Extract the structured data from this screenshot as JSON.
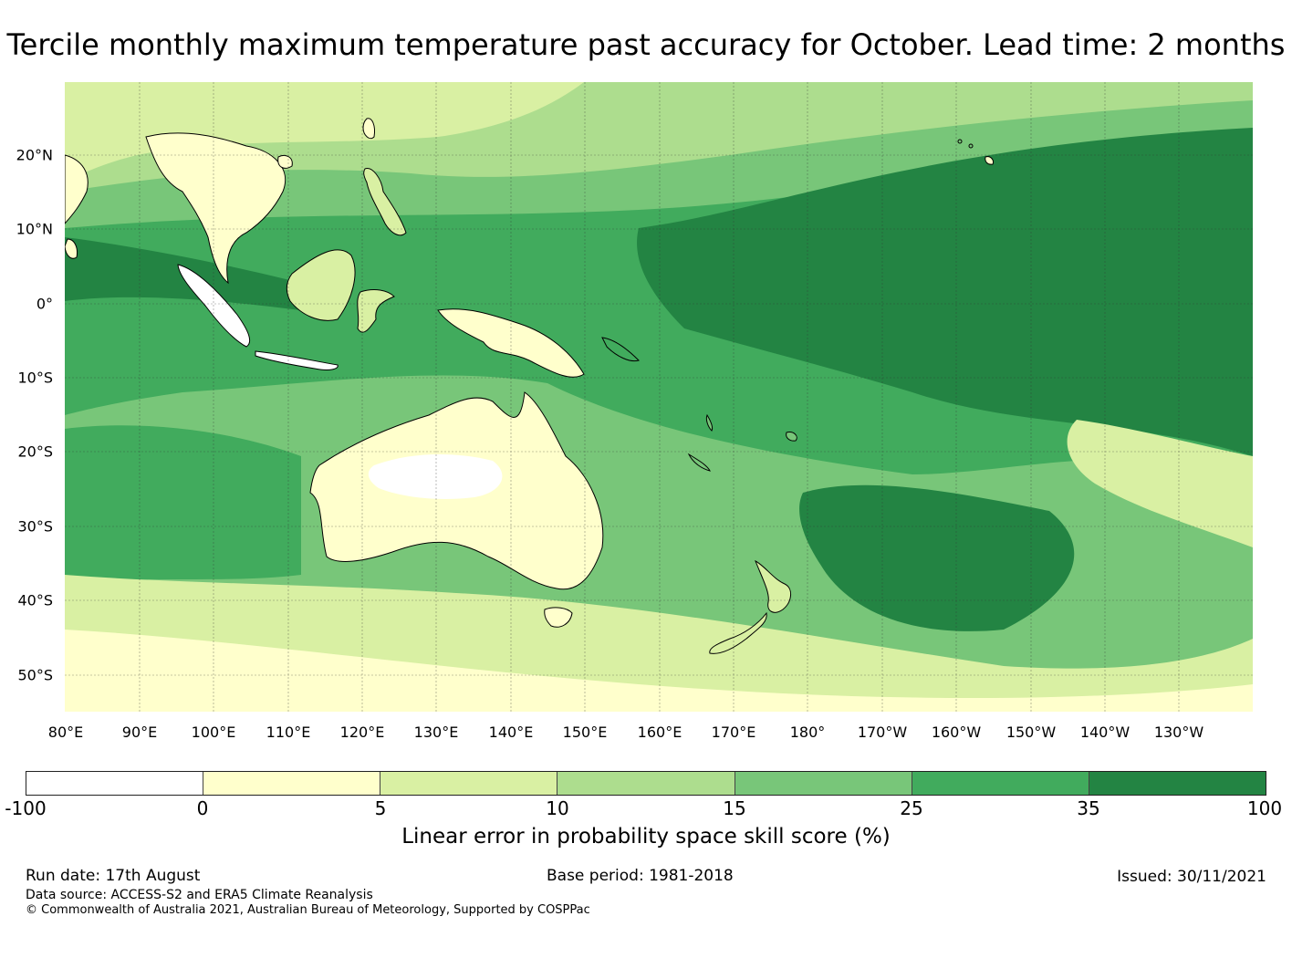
{
  "title": "Tercile monthly maximum temperature past accuracy for October. Lead time: 2 months",
  "map": {
    "lat_labels": [
      "20°N",
      "10°N",
      "0°",
      "10°S",
      "20°S",
      "30°S",
      "40°S",
      "50°S"
    ],
    "lon_labels": [
      "80°E",
      "90°E",
      "100°E",
      "110°E",
      "120°E",
      "130°E",
      "140°E",
      "150°E",
      "160°E",
      "170°E",
      "180°",
      "170°W",
      "160°W",
      "150°W",
      "140°W",
      "130°W"
    ],
    "region": "Western Pacific, Australia and Maritime Continent"
  },
  "colorbar": {
    "tick_labels": [
      "-100",
      "0",
      "5",
      "10",
      "15",
      "25",
      "35",
      "100"
    ],
    "colors": [
      "#ffffff",
      "#ffffcc",
      "#d9f0a3",
      "#addd8e",
      "#78c679",
      "#41ab5d",
      "#238443"
    ],
    "label": "Linear error in probability space skill score (%)"
  },
  "footer": {
    "run_date": "Run date: 17th August",
    "base_period": "Base period: 1981-2018",
    "issued": "Issued: 30/11/2021",
    "data_source": "Data source: ACCESS-S2 and ERA5 Climate Reanalysis",
    "copyright": "© Commonwealth of Australia 2021, Australian Bureau of Meteorology, Supported by COSPPac"
  }
}
